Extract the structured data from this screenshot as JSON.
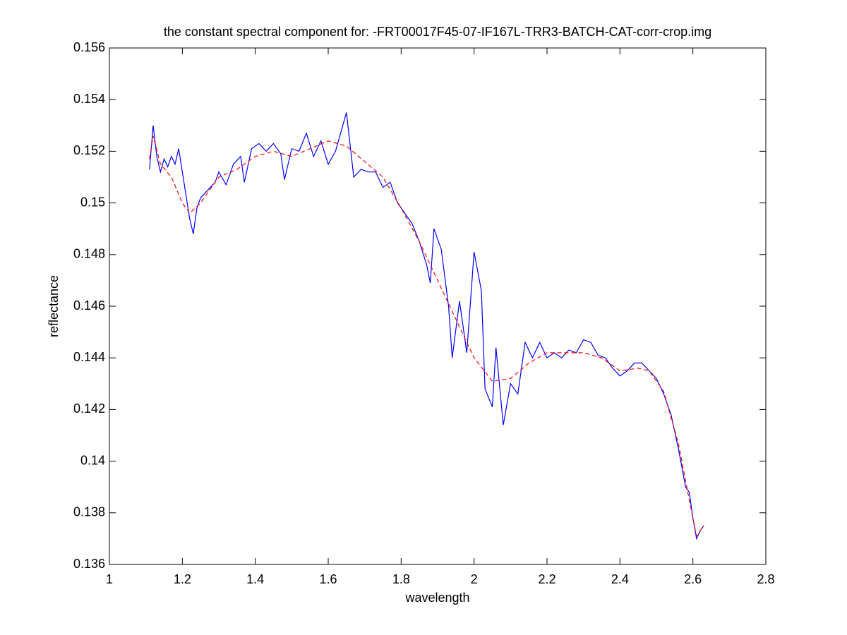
{
  "chart_data": {
    "type": "line",
    "title": "the constant spectral component for: -FRT00017F45-07-IF167L-TRR3-BATCH-CAT-corr-crop.img",
    "x_label": "wavelength",
    "y_label": "reflectance",
    "xlim": [
      1,
      2.8
    ],
    "xticks": [
      1,
      1.2,
      1.4,
      1.6,
      1.8,
      2,
      2.2,
      2.4,
      2.6,
      2.8
    ],
    "ylim": [
      0.136,
      0.156
    ],
    "yticks": [
      0.136,
      0.138,
      0.14,
      0.142,
      0.144,
      0.146,
      0.148,
      0.15,
      0.152,
      0.154,
      0.156
    ],
    "grid": false,
    "series": [
      {
        "color": "#0000ff",
        "dash": false,
        "x": [
          1.11,
          1.12,
          1.13,
          1.14,
          1.15,
          1.16,
          1.17,
          1.18,
          1.19,
          1.2,
          1.21,
          1.22,
          1.23,
          1.24,
          1.25,
          1.27,
          1.29,
          1.3,
          1.32,
          1.34,
          1.36,
          1.37,
          1.39,
          1.41,
          1.43,
          1.45,
          1.47,
          1.48,
          1.5,
          1.52,
          1.54,
          1.56,
          1.58,
          1.6,
          1.62,
          1.64,
          1.65,
          1.67,
          1.69,
          1.71,
          1.73,
          1.75,
          1.77,
          1.79,
          1.81,
          1.83,
          1.85,
          1.87,
          1.88,
          1.89,
          1.91,
          1.93,
          1.94,
          1.96,
          1.98,
          2,
          2.02,
          2.03,
          2.05,
          2.06,
          2.08,
          2.1,
          2.12,
          2.14,
          2.16,
          2.18,
          2.2,
          2.22,
          2.24,
          2.26,
          2.28,
          2.3,
          2.32,
          2.34,
          2.36,
          2.38,
          2.4,
          2.42,
          2.44,
          2.46,
          2.48,
          2.5,
          2.52,
          2.54,
          2.56,
          2.58,
          2.59,
          2.6,
          2.61,
          2.62,
          2.63
        ],
        "values": [
          0.1513,
          0.153,
          0.1518,
          0.1512,
          0.1517,
          0.1514,
          0.1518,
          0.1515,
          0.1521,
          0.1512,
          0.1503,
          0.1494,
          0.1488,
          0.1498,
          0.1502,
          0.1505,
          0.1508,
          0.1512,
          0.1507,
          0.1515,
          0.1518,
          0.1508,
          0.1521,
          0.1523,
          0.152,
          0.1523,
          0.1519,
          0.1509,
          0.1521,
          0.152,
          0.1527,
          0.1518,
          0.1524,
          0.1515,
          0.152,
          0.153,
          0.1535,
          0.151,
          0.1513,
          0.1512,
          0.1512,
          0.1506,
          0.1508,
          0.15,
          0.1496,
          0.1492,
          0.1485,
          0.1476,
          0.1469,
          0.149,
          0.1482,
          0.146,
          0.144,
          0.1462,
          0.1442,
          0.1481,
          0.1466,
          0.1428,
          0.1421,
          0.1444,
          0.1414,
          0.143,
          0.1426,
          0.1446,
          0.144,
          0.1446,
          0.144,
          0.1442,
          0.144,
          0.1443,
          0.1442,
          0.1447,
          0.1446,
          0.1441,
          0.144,
          0.1436,
          0.1433,
          0.1435,
          0.1438,
          0.1438,
          0.1435,
          0.1432,
          0.1426,
          0.1418,
          0.1405,
          0.139,
          0.1388,
          0.1378,
          0.137,
          0.1373,
          0.1375
        ]
      },
      {
        "color": "#ff0000",
        "dash": true,
        "x": [
          1.11,
          1.12,
          1.14,
          1.17,
          1.2,
          1.22,
          1.25,
          1.3,
          1.35,
          1.4,
          1.45,
          1.5,
          1.55,
          1.6,
          1.65,
          1.7,
          1.75,
          1.8,
          1.85,
          1.9,
          1.95,
          2,
          2.05,
          2.1,
          2.15,
          2.2,
          2.25,
          2.3,
          2.35,
          2.4,
          2.45,
          2.48,
          2.52,
          2.56,
          2.59,
          2.61,
          2.63
        ],
        "values": [
          0.1517,
          0.1526,
          0.1515,
          0.151,
          0.15,
          0.1496,
          0.15,
          0.151,
          0.1513,
          0.1518,
          0.152,
          0.1518,
          0.1521,
          0.1524,
          0.1522,
          0.1516,
          0.151,
          0.1498,
          0.1485,
          0.147,
          0.1455,
          0.144,
          0.1431,
          0.1432,
          0.1438,
          0.1442,
          0.1442,
          0.1442,
          0.144,
          0.1435,
          0.1436,
          0.1435,
          0.1427,
          0.1407,
          0.1385,
          0.1371,
          0.1375
        ]
      }
    ]
  }
}
